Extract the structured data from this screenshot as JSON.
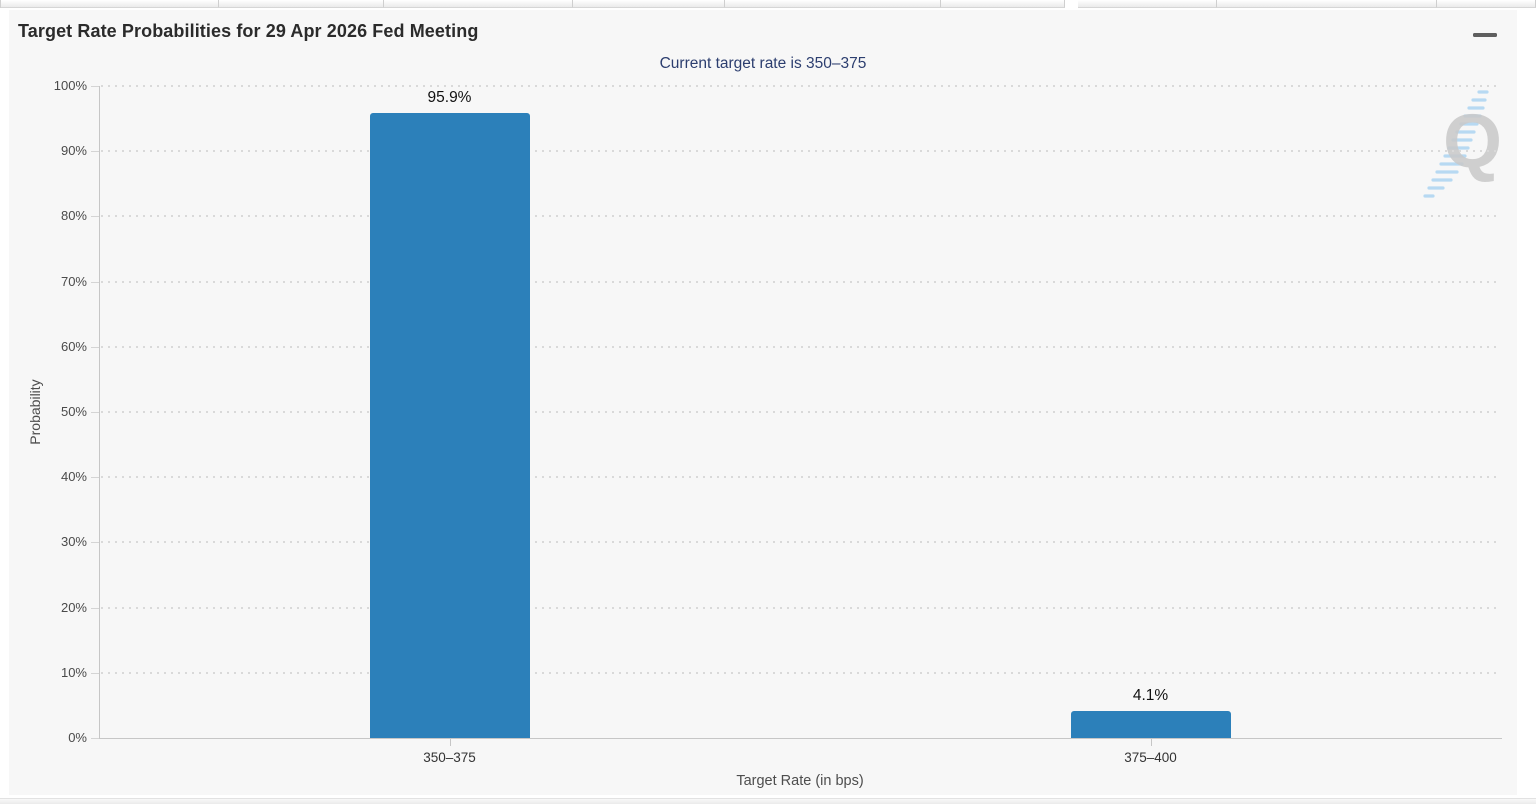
{
  "chart": {
    "title": "Target Rate Probabilities for 29 Apr 2026 Fed Meeting",
    "subtitle": "Current target rate is 350–375",
    "watermark_text": "Q",
    "colors": {
      "bar": "#2c80ba",
      "subtitle_text": "#2c3e6f",
      "chart_background": "#f7f7f7",
      "gridline": "#d9d9d9",
      "axis_line": "#c6c6c6",
      "watermark_gray": "#c9c9c9",
      "watermark_blue": "#b7d9f2"
    }
  },
  "chart_data": {
    "type": "bar",
    "categories": [
      "350–375",
      "375–400"
    ],
    "values": [
      95.9,
      4.1
    ],
    "data_labels": [
      "95.9%",
      "4.1%"
    ],
    "title": "Target Rate Probabilities for 29 Apr 2026 Fed Meeting",
    "subtitle": "Current target rate is 350–375",
    "xlabel": "Target Rate (in bps)",
    "ylabel": "Probability",
    "ylim": [
      0,
      100
    ],
    "ytick_step": 10,
    "ytick_suffix": "%",
    "grid": "dotted horizontal gridlines",
    "legend": "none",
    "bar_color": "#2c80ba"
  }
}
